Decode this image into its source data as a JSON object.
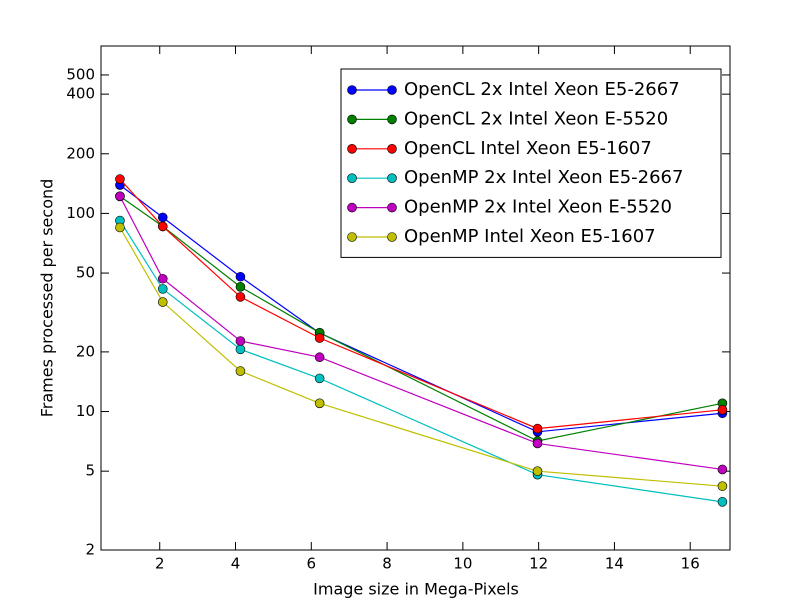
{
  "chart_data": {
    "type": "line",
    "x_label": "Image size in Mega-Pixels",
    "y_label": "Frames processed per second",
    "x": [
      0.95,
      2.08,
      4.13,
      6.22,
      11.97,
      16.85
    ],
    "xlim": [
      0.45,
      17.05
    ],
    "xticks": [
      2,
      4,
      6,
      8,
      10,
      12,
      14,
      16
    ],
    "ylim": [
      2,
      700
    ],
    "yticks": [
      2,
      5,
      10,
      20,
      50,
      100,
      200,
      400,
      500
    ],
    "log_y": true,
    "legend": "upper right",
    "series": [
      {
        "name": "OpenCL 2x Intel Xeon E5-2667",
        "color": "#0000ff",
        "values": [
          139,
          95.5,
          47.9,
          24.9,
          7.9,
          9.8
        ]
      },
      {
        "name": "OpenCL 2x Intel Xeon E-5520",
        "color": "#008000",
        "values": [
          122,
          86,
          42.6,
          25,
          7.1,
          11.0
        ]
      },
      {
        "name": "OpenCL Intel Xeon E5-1607",
        "color": "#ff0000",
        "values": [
          149,
          86,
          37.9,
          23.5,
          8.2,
          10.2
        ]
      },
      {
        "name": "OpenMP 2x Intel Xeon E5-2667",
        "color": "#00bfbf",
        "values": [
          92,
          41.6,
          20.6,
          14.7,
          4.8,
          3.5
        ]
      },
      {
        "name": "OpenMP 2x Intel Xeon E-5520",
        "color": "#bf00bf",
        "values": [
          122,
          46.8,
          22.7,
          18.8,
          6.9,
          5.1
        ]
      },
      {
        "name": "OpenMP Intel Xeon E5-1607",
        "color": "#bfbf00",
        "values": [
          84.9,
          35.7,
          16,
          11,
          5.0,
          4.2
        ]
      }
    ]
  }
}
